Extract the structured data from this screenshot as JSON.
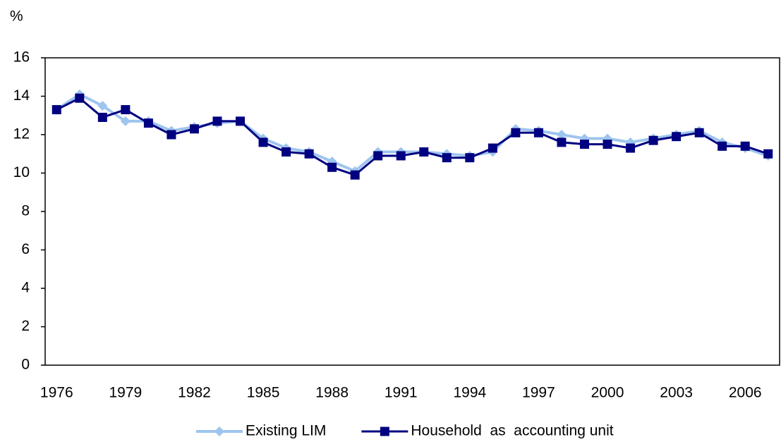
{
  "chart_data": {
    "type": "line",
    "y_label": "%",
    "categories": [
      "1976",
      null,
      null,
      "1979",
      null,
      null,
      "1982",
      null,
      null,
      "1985",
      null,
      null,
      "1988",
      null,
      null,
      "1991",
      null,
      null,
      "1994",
      null,
      null,
      "1997",
      null,
      null,
      "2000",
      null,
      null,
      "2003",
      null,
      null,
      "2006",
      null
    ],
    "series": [
      {
        "name": "Existing LIM",
        "color": "#9ec5ee",
        "marker": "diamond",
        "values": [
          13.3,
          14.1,
          13.5,
          12.7,
          12.7,
          12.2,
          12.4,
          12.6,
          12.7,
          11.8,
          11.3,
          11.1,
          10.6,
          10.1,
          11.1,
          11.1,
          11.1,
          11.0,
          10.9,
          11.1,
          12.3,
          12.2,
          12.0,
          11.8,
          11.8,
          11.6,
          11.8,
          12.0,
          12.2,
          11.6,
          11.3,
          10.9
        ]
      },
      {
        "name": "Household  as  accounting unit",
        "color": "#000080",
        "marker": "square",
        "values": [
          13.3,
          13.9,
          12.9,
          13.3,
          12.6,
          12.0,
          12.3,
          12.7,
          12.7,
          11.6,
          11.1,
          11.0,
          10.3,
          9.9,
          10.9,
          10.9,
          11.1,
          10.8,
          10.8,
          11.3,
          12.1,
          12.1,
          11.6,
          11.5,
          11.5,
          11.3,
          11.7,
          11.9,
          12.1,
          11.4,
          11.4,
          11.0
        ]
      }
    ],
    "ylim": [
      0,
      16
    ],
    "yticks": [
      0,
      2,
      4,
      6,
      8,
      10,
      12,
      14,
      16
    ],
    "legend": "bottom"
  }
}
